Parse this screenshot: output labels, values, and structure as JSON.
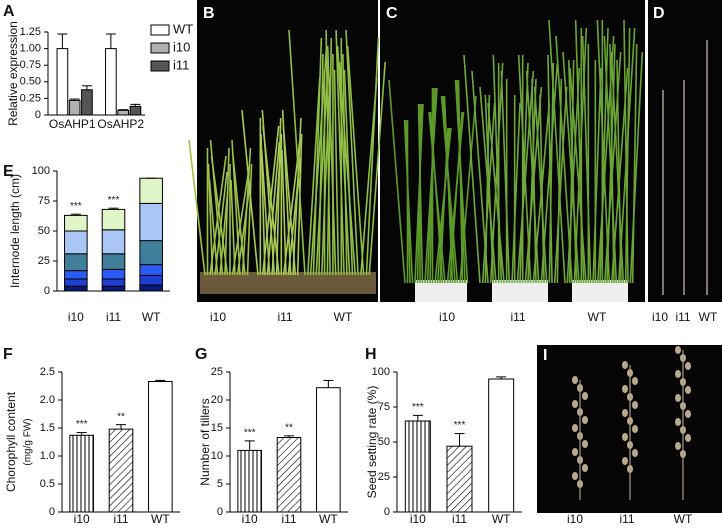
{
  "chart_data": [
    {
      "type": "bar",
      "panel": "A",
      "y_label": "Relative expression",
      "categories": [
        "OsAHP1",
        "OsAHP2"
      ],
      "series": [
        {
          "name": "WT",
          "color": "#ffffff",
          "values": [
            1.0,
            1.0
          ],
          "errors": [
            0.22,
            0.22
          ]
        },
        {
          "name": "i10",
          "color": "#b0b0b0",
          "values": [
            0.22,
            0.07
          ],
          "errors": [
            0.02,
            0.01
          ]
        },
        {
          "name": "i11",
          "color": "#555555",
          "values": [
            0.38,
            0.13
          ],
          "errors": [
            0.06,
            0.03
          ]
        }
      ],
      "ylim": [
        0,
        1.25
      ],
      "yticks": [
        0,
        0.25,
        {
          "value": 0.5,
          "label": "0.50"
        },
        0.75,
        {
          "value": 1.0,
          "label": "1.00"
        },
        1.25
      ],
      "legend": "upper right"
    },
    {
      "type": "bar",
      "stacked": true,
      "panel": "E",
      "y_label": "Internode length (cm)",
      "categories": [
        "i10",
        "i11",
        "WT"
      ],
      "series": [
        {
          "color": "#0a1a7a",
          "values": [
            4,
            4,
            5
          ]
        },
        {
          "color": "#1f3fd0",
          "values": [
            6,
            6,
            8
          ]
        },
        {
          "color": "#2a5cf5",
          "values": [
            7,
            8,
            9
          ]
        },
        {
          "color": "#3f7f9a",
          "values": [
            14,
            13,
            20
          ]
        },
        {
          "color": "#a9c6f5",
          "values": [
            19,
            20,
            31
          ]
        },
        {
          "color": "#dff5c8",
          "values": [
            13,
            17,
            21
          ]
        }
      ],
      "errors": [
        1,
        1,
        0
      ],
      "annotations": [
        "***",
        "***",
        null
      ],
      "ylim": [
        0,
        100
      ],
      "yticks": [
        0,
        25,
        50,
        75,
        100
      ]
    },
    {
      "type": "bar",
      "panel": "F",
      "y_label": "Chorophyll content",
      "y_sublabel": "(mg/g FW)",
      "categories": [
        "i10",
        "i11",
        "WT"
      ],
      "values": [
        1.37,
        1.48,
        2.33
      ],
      "errors": [
        0.05,
        0.08,
        0.02
      ],
      "color": "#ffffff",
      "patterns": [
        "vertical",
        "diagonal",
        "none"
      ],
      "annotations": [
        "***",
        "**",
        null
      ],
      "ylim": [
        0,
        2.5
      ],
      "yticks": [
        0,
        0.5,
        {
          "value": 1.0,
          "label": "1.0"
        },
        1.5,
        {
          "value": 2.0,
          "label": "2.0"
        },
        2.5
      ]
    },
    {
      "type": "bar",
      "panel": "G",
      "y_label": "Number of tillers",
      "categories": [
        "i10",
        "i11",
        "WT"
      ],
      "values": [
        11,
        13.3,
        22.2
      ],
      "errors": [
        1.7,
        0.3,
        1.3
      ],
      "color": "#ffffff",
      "patterns": [
        "vertical",
        "diagonal",
        "none"
      ],
      "annotations": [
        "***",
        "**",
        null
      ],
      "ylim": [
        0,
        25
      ],
      "yticks": [
        0,
        5,
        10,
        15,
        20,
        25
      ]
    },
    {
      "type": "bar",
      "panel": "H",
      "y_label": "Seed setting rate (%)",
      "categories": [
        "i10",
        "i11",
        "WT"
      ],
      "values": [
        65,
        47,
        95
      ],
      "errors": [
        4,
        9,
        1.5
      ],
      "color": "#ffffff",
      "patterns": [
        "vertical",
        "diagonal",
        "none"
      ],
      "annotations": [
        "***",
        "***",
        null
      ],
      "ylim": [
        0,
        100
      ],
      "yticks": [
        0,
        25,
        50,
        75,
        100
      ]
    }
  ],
  "photo_panels": [
    {
      "letter": "B",
      "labels": [
        "i10",
        "i11",
        "WT"
      ]
    },
    {
      "letter": "C",
      "labels": [
        "i10",
        "i11",
        "WT"
      ]
    },
    {
      "letter": "D",
      "labels": [
        "i10",
        "i11",
        "WT"
      ]
    },
    {
      "letter": "I",
      "labels": [
        "i10",
        "i11",
        "WT"
      ]
    }
  ]
}
